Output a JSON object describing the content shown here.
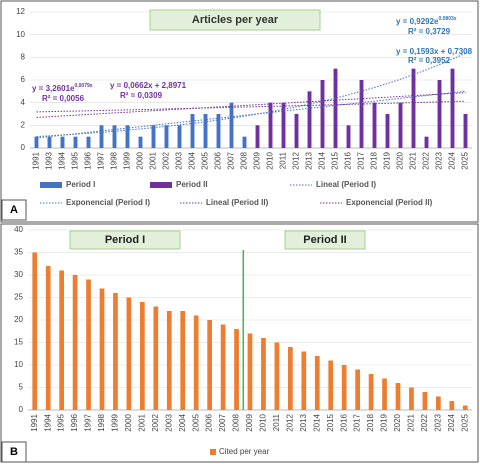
{
  "chart_data": [
    {
      "type": "bar",
      "panel_label": "A",
      "title": "Articles per year",
      "categories": [
        "1991",
        "1993",
        "1994",
        "1995",
        "1996",
        "1997",
        "1998",
        "1999",
        "2000",
        "2001",
        "2002",
        "2003",
        "2004",
        "2005",
        "2006",
        "2007",
        "2008",
        "2009",
        "2010",
        "2011",
        "2012",
        "2013",
        "2014",
        "2015",
        "2016",
        "2017",
        "2018",
        "2019",
        "2020",
        "2021",
        "2022",
        "2023",
        "2024",
        "2025"
      ],
      "series": [
        {
          "name": "Period I",
          "color": "#4472c4",
          "values": [
            1,
            1,
            1,
            1,
            1,
            2,
            2,
            2,
            1,
            2,
            2,
            2,
            3,
            3,
            3,
            4,
            1,
            null,
            null,
            null,
            null,
            null,
            null,
            null,
            null,
            null,
            null,
            null,
            null,
            null,
            null,
            null,
            null,
            null
          ]
        },
        {
          "name": "Period II",
          "color": "#7030a0",
          "values": [
            null,
            null,
            null,
            null,
            null,
            null,
            null,
            null,
            null,
            null,
            null,
            null,
            null,
            null,
            null,
            null,
            null,
            2,
            4,
            4,
            3,
            5,
            6,
            7,
            2,
            6,
            4,
            3,
            4,
            7,
            1,
            6,
            7,
            3
          ]
        }
      ],
      "trendlines": [
        {
          "name": "Lineal (Period I)",
          "color": "#4472c4",
          "series": 0,
          "fit": "linear"
        },
        {
          "name": "Exponencial (Period I)",
          "color": "#4472c4",
          "series": 0,
          "fit": "exp"
        },
        {
          "name": "Lineal (Period II)",
          "color": "#7030a0",
          "series": 1,
          "fit": "linear"
        },
        {
          "name": "Exponencial (Period II)",
          "color": "#7030a0",
          "series": 1,
          "fit": "exp"
        }
      ],
      "annotations": [
        {
          "text": "y = 3,2601e",
          "sup": "0,0079x",
          "color": "#7030a0"
        },
        {
          "text": "R² = 0,0056",
          "color": "#7030a0"
        },
        {
          "text": "y = 0,0662x + 2,8971",
          "color": "#7030a0"
        },
        {
          "text": "R² = 0,0309",
          "color": "#7030a0"
        },
        {
          "text": "y = 0,9292e",
          "sup": "0,0803x",
          "color": "#2e75b6"
        },
        {
          "text": "R² = 0,3729",
          "color": "#2e75b6"
        },
        {
          "text": "y = 0,1593x + 0,7308",
          "color": "#2e75b6"
        },
        {
          "text": "R² = 0,3952",
          "color": "#2e75b6"
        }
      ],
      "ylim": [
        0,
        12
      ],
      "yticks": [
        0,
        2,
        4,
        6,
        8,
        10,
        12
      ],
      "grid": true
    },
    {
      "type": "bar",
      "panel_label": "B",
      "categories": [
        "1991",
        "1994",
        "1995",
        "1996",
        "1997",
        "1998",
        "1999",
        "2000",
        "2001",
        "2002",
        "2003",
        "2004",
        "2005",
        "2006",
        "2007",
        "2008",
        "2009",
        "2010",
        "2011",
        "2012",
        "2013",
        "2014",
        "2015",
        "2016",
        "2017",
        "2018",
        "2019",
        "2020",
        "2021",
        "2022",
        "2023",
        "2024",
        "2025"
      ],
      "series": [
        {
          "name": "Cited per year",
          "color": "#ed7d31",
          "values": [
            35,
            32,
            31,
            30,
            29,
            27,
            26,
            25,
            24,
            23,
            22,
            22,
            21,
            20,
            19,
            18,
            17,
            16,
            15,
            14,
            13,
            12,
            11,
            10,
            9,
            8,
            7,
            6,
            5,
            4,
            3,
            2,
            1
          ]
        }
      ],
      "annotations": [
        {
          "text": "Period I"
        },
        {
          "text": "Period II"
        }
      ],
      "divider": {
        "after": "2008",
        "color": "#4caf50"
      },
      "ylim": [
        0,
        40
      ],
      "yticks": [
        0,
        5,
        10,
        15,
        20,
        25,
        30,
        35,
        40
      ],
      "grid": true
    }
  ]
}
